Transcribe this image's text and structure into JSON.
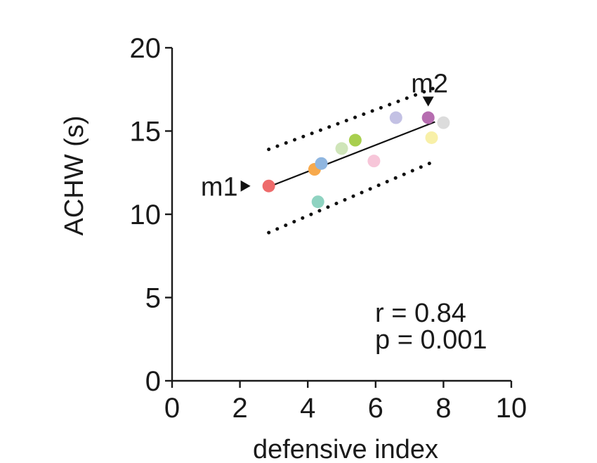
{
  "chart_data": {
    "type": "scatter",
    "xlabel": "defensive index",
    "ylabel": "ACHW (s)",
    "xlim": [
      0,
      10
    ],
    "ylim": [
      0,
      20
    ],
    "xticks": [
      0,
      2,
      4,
      6,
      8,
      10
    ],
    "yticks": [
      0,
      5,
      10,
      15,
      20
    ],
    "grid": false,
    "points": [
      {
        "x": 2.85,
        "y": 11.7,
        "color": "#ee6b6b"
      },
      {
        "x": 4.2,
        "y": 12.7,
        "color": "#f7a94c"
      },
      {
        "x": 4.4,
        "y": 13.05,
        "color": "#8fb6e0"
      },
      {
        "x": 4.3,
        "y": 10.75,
        "color": "#8fd3c1"
      },
      {
        "x": 5.0,
        "y": 13.95,
        "color": "#cfe5b9"
      },
      {
        "x": 5.4,
        "y": 14.45,
        "color": "#a8cf4e"
      },
      {
        "x": 5.95,
        "y": 13.2,
        "color": "#f7c6d9"
      },
      {
        "x": 6.6,
        "y": 15.8,
        "color": "#c3c1e4"
      },
      {
        "x": 7.55,
        "y": 15.8,
        "color": "#b66db0"
      },
      {
        "x": 7.65,
        "y": 14.6,
        "color": "#f8f0a8"
      },
      {
        "x": 8.0,
        "y": 15.5,
        "color": "#dcdcdc"
      }
    ],
    "fit_line": {
      "x": [
        2.85,
        7.75
      ],
      "y": [
        11.65,
        15.55
      ]
    },
    "confidence_band": {
      "upper": {
        "x": [
          2.85,
          7.75
        ],
        "y": [
          13.9,
          17.6
        ]
      },
      "lower": {
        "x": [
          2.85,
          7.75
        ],
        "y": [
          8.9,
          13.2
        ]
      }
    },
    "markers": [
      {
        "label": "m1",
        "x": 2.85,
        "y": 11.7,
        "direction": "right"
      },
      {
        "label": "m2",
        "x": 7.55,
        "y": 15.8,
        "direction": "down"
      }
    ],
    "annotations": {
      "r": "r = 0.84",
      "p": "p = 0.001"
    }
  }
}
